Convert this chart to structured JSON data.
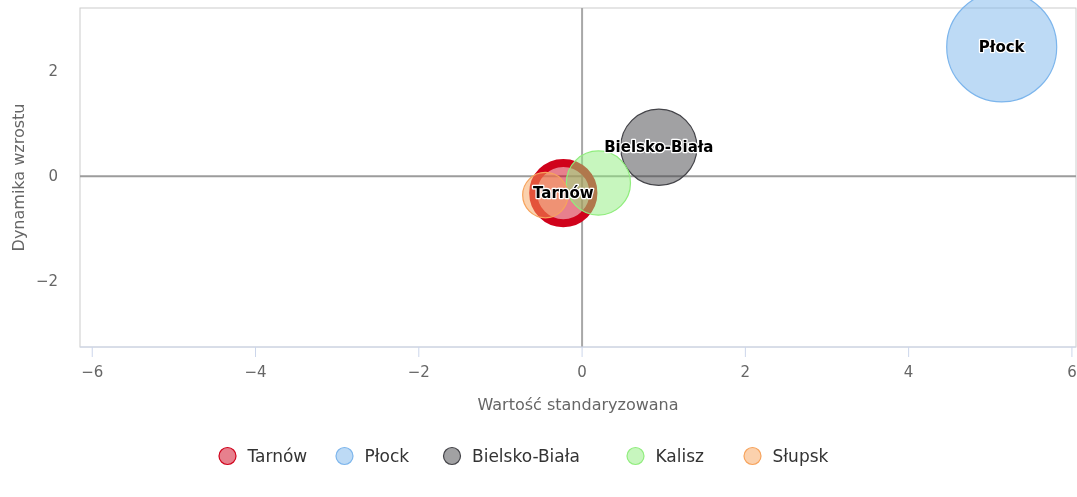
{
  "chart_data": {
    "type": "bubble",
    "xlabel": "Wartość standaryzowana",
    "ylabel": "Dynamika wzrostu",
    "xlim": [
      -6.15,
      6.05
    ],
    "xticks": [
      {
        "value": -6,
        "label": "−6"
      },
      {
        "value": -4,
        "label": "−4"
      },
      {
        "value": -2,
        "label": "−2"
      },
      0,
      2,
      4,
      6
    ],
    "ylim": [
      -3.25,
      3.2
    ],
    "yticks": [
      {
        "value": -2,
        "label": "−2"
      },
      0,
      2
    ],
    "grid": false,
    "legend": "bottom",
    "ref_lines": [
      {
        "axis": "x",
        "value": 0,
        "color": "#a8a8a8"
      },
      {
        "axis": "y",
        "value": 0,
        "color": "#9c9c9c"
      }
    ],
    "annotations": [
      {
        "text": "Płock",
        "x": 5.14,
        "y": 2.46
      },
      {
        "text": "Bielsko-Biała",
        "x": 0.94,
        "y": 0.55
      },
      {
        "text": "Tarnów",
        "x": -0.23,
        "y": -0.32
      }
    ],
    "series": [
      {
        "name": "Tarnów",
        "color": "#d0021b",
        "x": [
          -0.23
        ],
        "values": [
          -0.32
        ],
        "sizes": [
          0.3
        ]
      },
      {
        "name": "Płock",
        "color": "#7cb5ec",
        "x": [
          5.14
        ],
        "values": [
          2.46
        ],
        "sizes": [
          1
        ]
      },
      {
        "name": "Bielsko-Biała",
        "color": "#434348",
        "x": [
          0.94
        ],
        "values": [
          0.55
        ],
        "sizes": [
          0.48
        ]
      },
      {
        "name": "Kalisz",
        "color": "#90ed7d",
        "x": [
          0.2
        ],
        "values": [
          -0.13
        ],
        "sizes": [
          0.34
        ]
      },
      {
        "name": "Słupsk",
        "color": "#f7a35c",
        "x": [
          -0.45
        ],
        "values": [
          -0.36
        ],
        "sizes": [
          0.17
        ]
      }
    ]
  }
}
